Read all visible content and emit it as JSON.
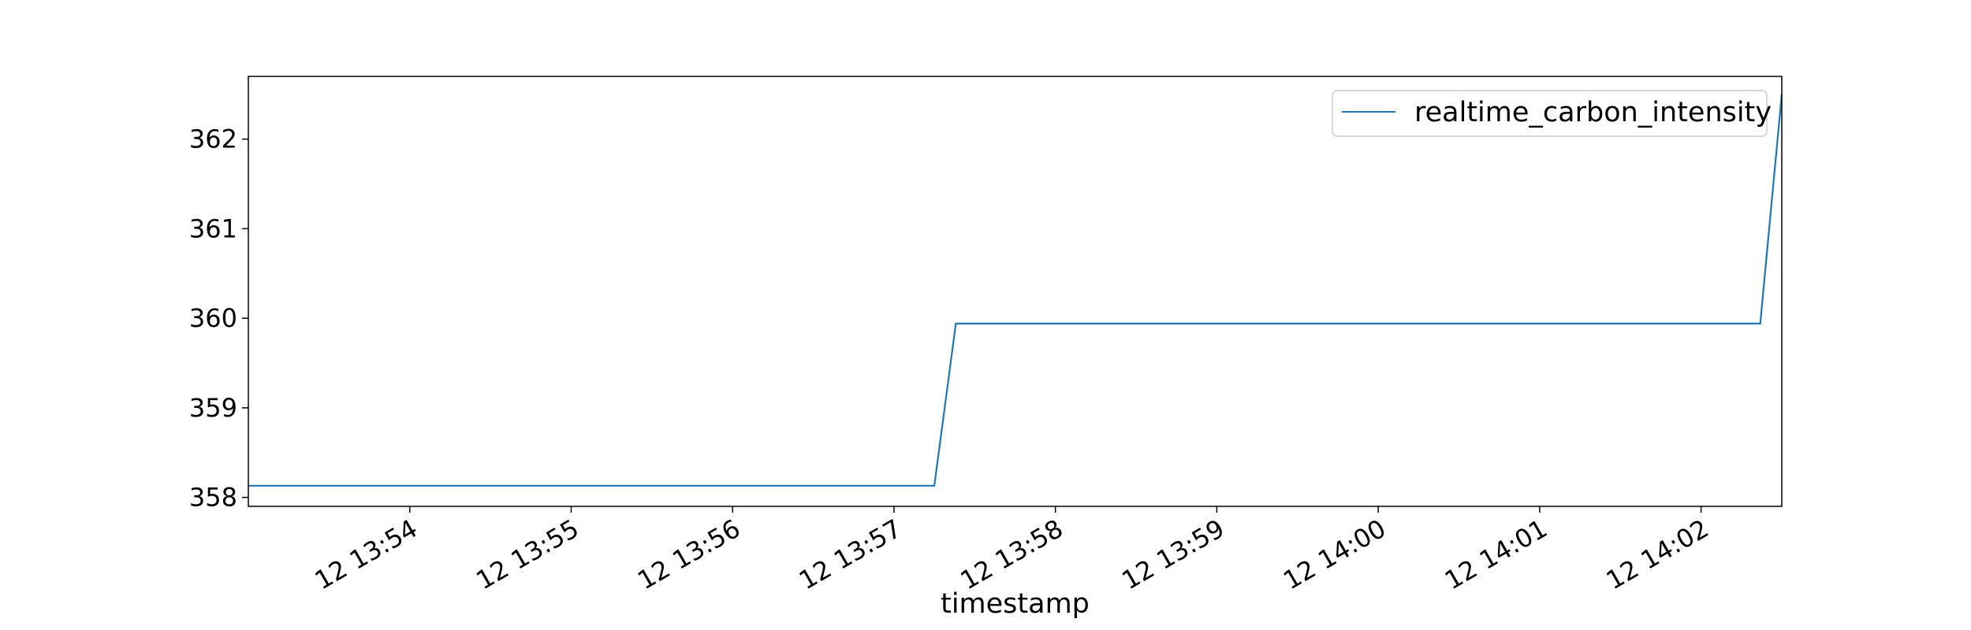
{
  "chart_data": {
    "type": "line",
    "title": "",
    "xlabel": "timestamp",
    "ylabel": "",
    "x_ticks": [
      "12 13:54",
      "12 13:55",
      "12 13:56",
      "12 13:57",
      "12 13:58",
      "12 13:59",
      "12 14:00",
      "12 14:01",
      "12 14:02"
    ],
    "y_ticks": [
      "358",
      "359",
      "360",
      "361",
      "362"
    ],
    "xlim": [
      "13:53:00",
      "14:02:30"
    ],
    "ylim": [
      357.9,
      362.7
    ],
    "grid": false,
    "legend_position": "top-right",
    "series": [
      {
        "name": "realtime_carbon_intensity",
        "color": "#1f77b4",
        "x": [
          "13:53:00",
          "13:57:15",
          "13:57:23",
          "14:02:22",
          "14:02:30"
        ],
        "y": [
          358.13,
          358.13,
          359.94,
          359.94,
          362.5
        ]
      }
    ]
  }
}
